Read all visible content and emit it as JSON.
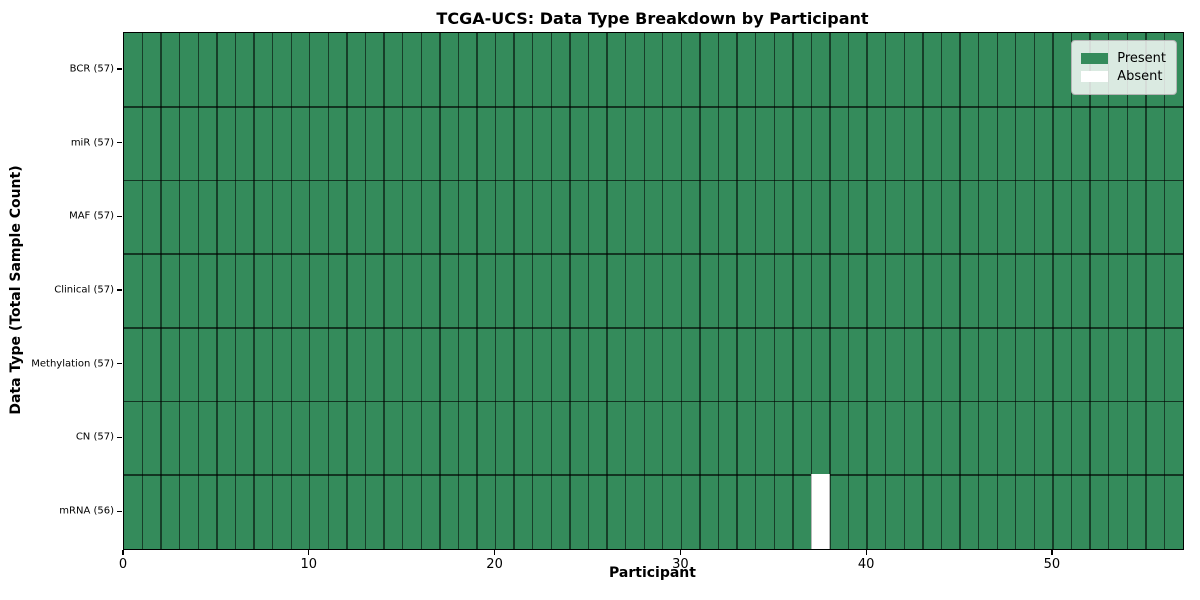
{
  "title": "TCGA-UCS: Data Type Breakdown by Participant",
  "axes": {
    "xlabel": "Participant",
    "ylabel": "Data Type (Total Sample Count)"
  },
  "legend": {
    "position": "upper right",
    "entries": [
      {
        "label": "Present",
        "color_key": "present"
      },
      {
        "label": "Absent",
        "color_key": "absent"
      }
    ]
  },
  "colors": {
    "present": "#348b5b",
    "absent": "#ffffff",
    "grid_vline": "rgba(0,0,0,0.55)",
    "grid_hline": "rgba(0,0,0,0.62)",
    "spine": "#000000",
    "legend_bg": "rgba(255,255,255,0.82)",
    "legend_border": "#b5b5b5"
  },
  "chart_data": {
    "type": "heatmap",
    "title": "TCGA-UCS: Data Type Breakdown by Participant",
    "xlabel": "Participant",
    "ylabel": "Data Type (Total Sample Count)",
    "n_participants": 57,
    "xlim": [
      0,
      57
    ],
    "x_ticks": [
      0,
      10,
      20,
      30,
      40,
      50
    ],
    "grid": true,
    "legend_position": "upper right",
    "cell_values": {
      "present": 1,
      "absent": 0
    },
    "rows": [
      {
        "label": "BCR (57)",
        "data_type": "BCR",
        "sample_count": 57,
        "absent_participant_indices": []
      },
      {
        "label": "miR (57)",
        "data_type": "miR",
        "sample_count": 57,
        "absent_participant_indices": []
      },
      {
        "label": "MAF (57)",
        "data_type": "MAF",
        "sample_count": 57,
        "absent_participant_indices": []
      },
      {
        "label": "Clinical (57)",
        "data_type": "Clinical",
        "sample_count": 57,
        "absent_participant_indices": []
      },
      {
        "label": "Methylation (57)",
        "data_type": "Methylation",
        "sample_count": 57,
        "absent_participant_indices": []
      },
      {
        "label": "CN (57)",
        "data_type": "CN",
        "sample_count": 57,
        "absent_participant_indices": []
      },
      {
        "label": "mRNA (56)",
        "data_type": "mRNA",
        "sample_count": 56,
        "absent_participant_indices": [
          37
        ]
      }
    ]
  }
}
